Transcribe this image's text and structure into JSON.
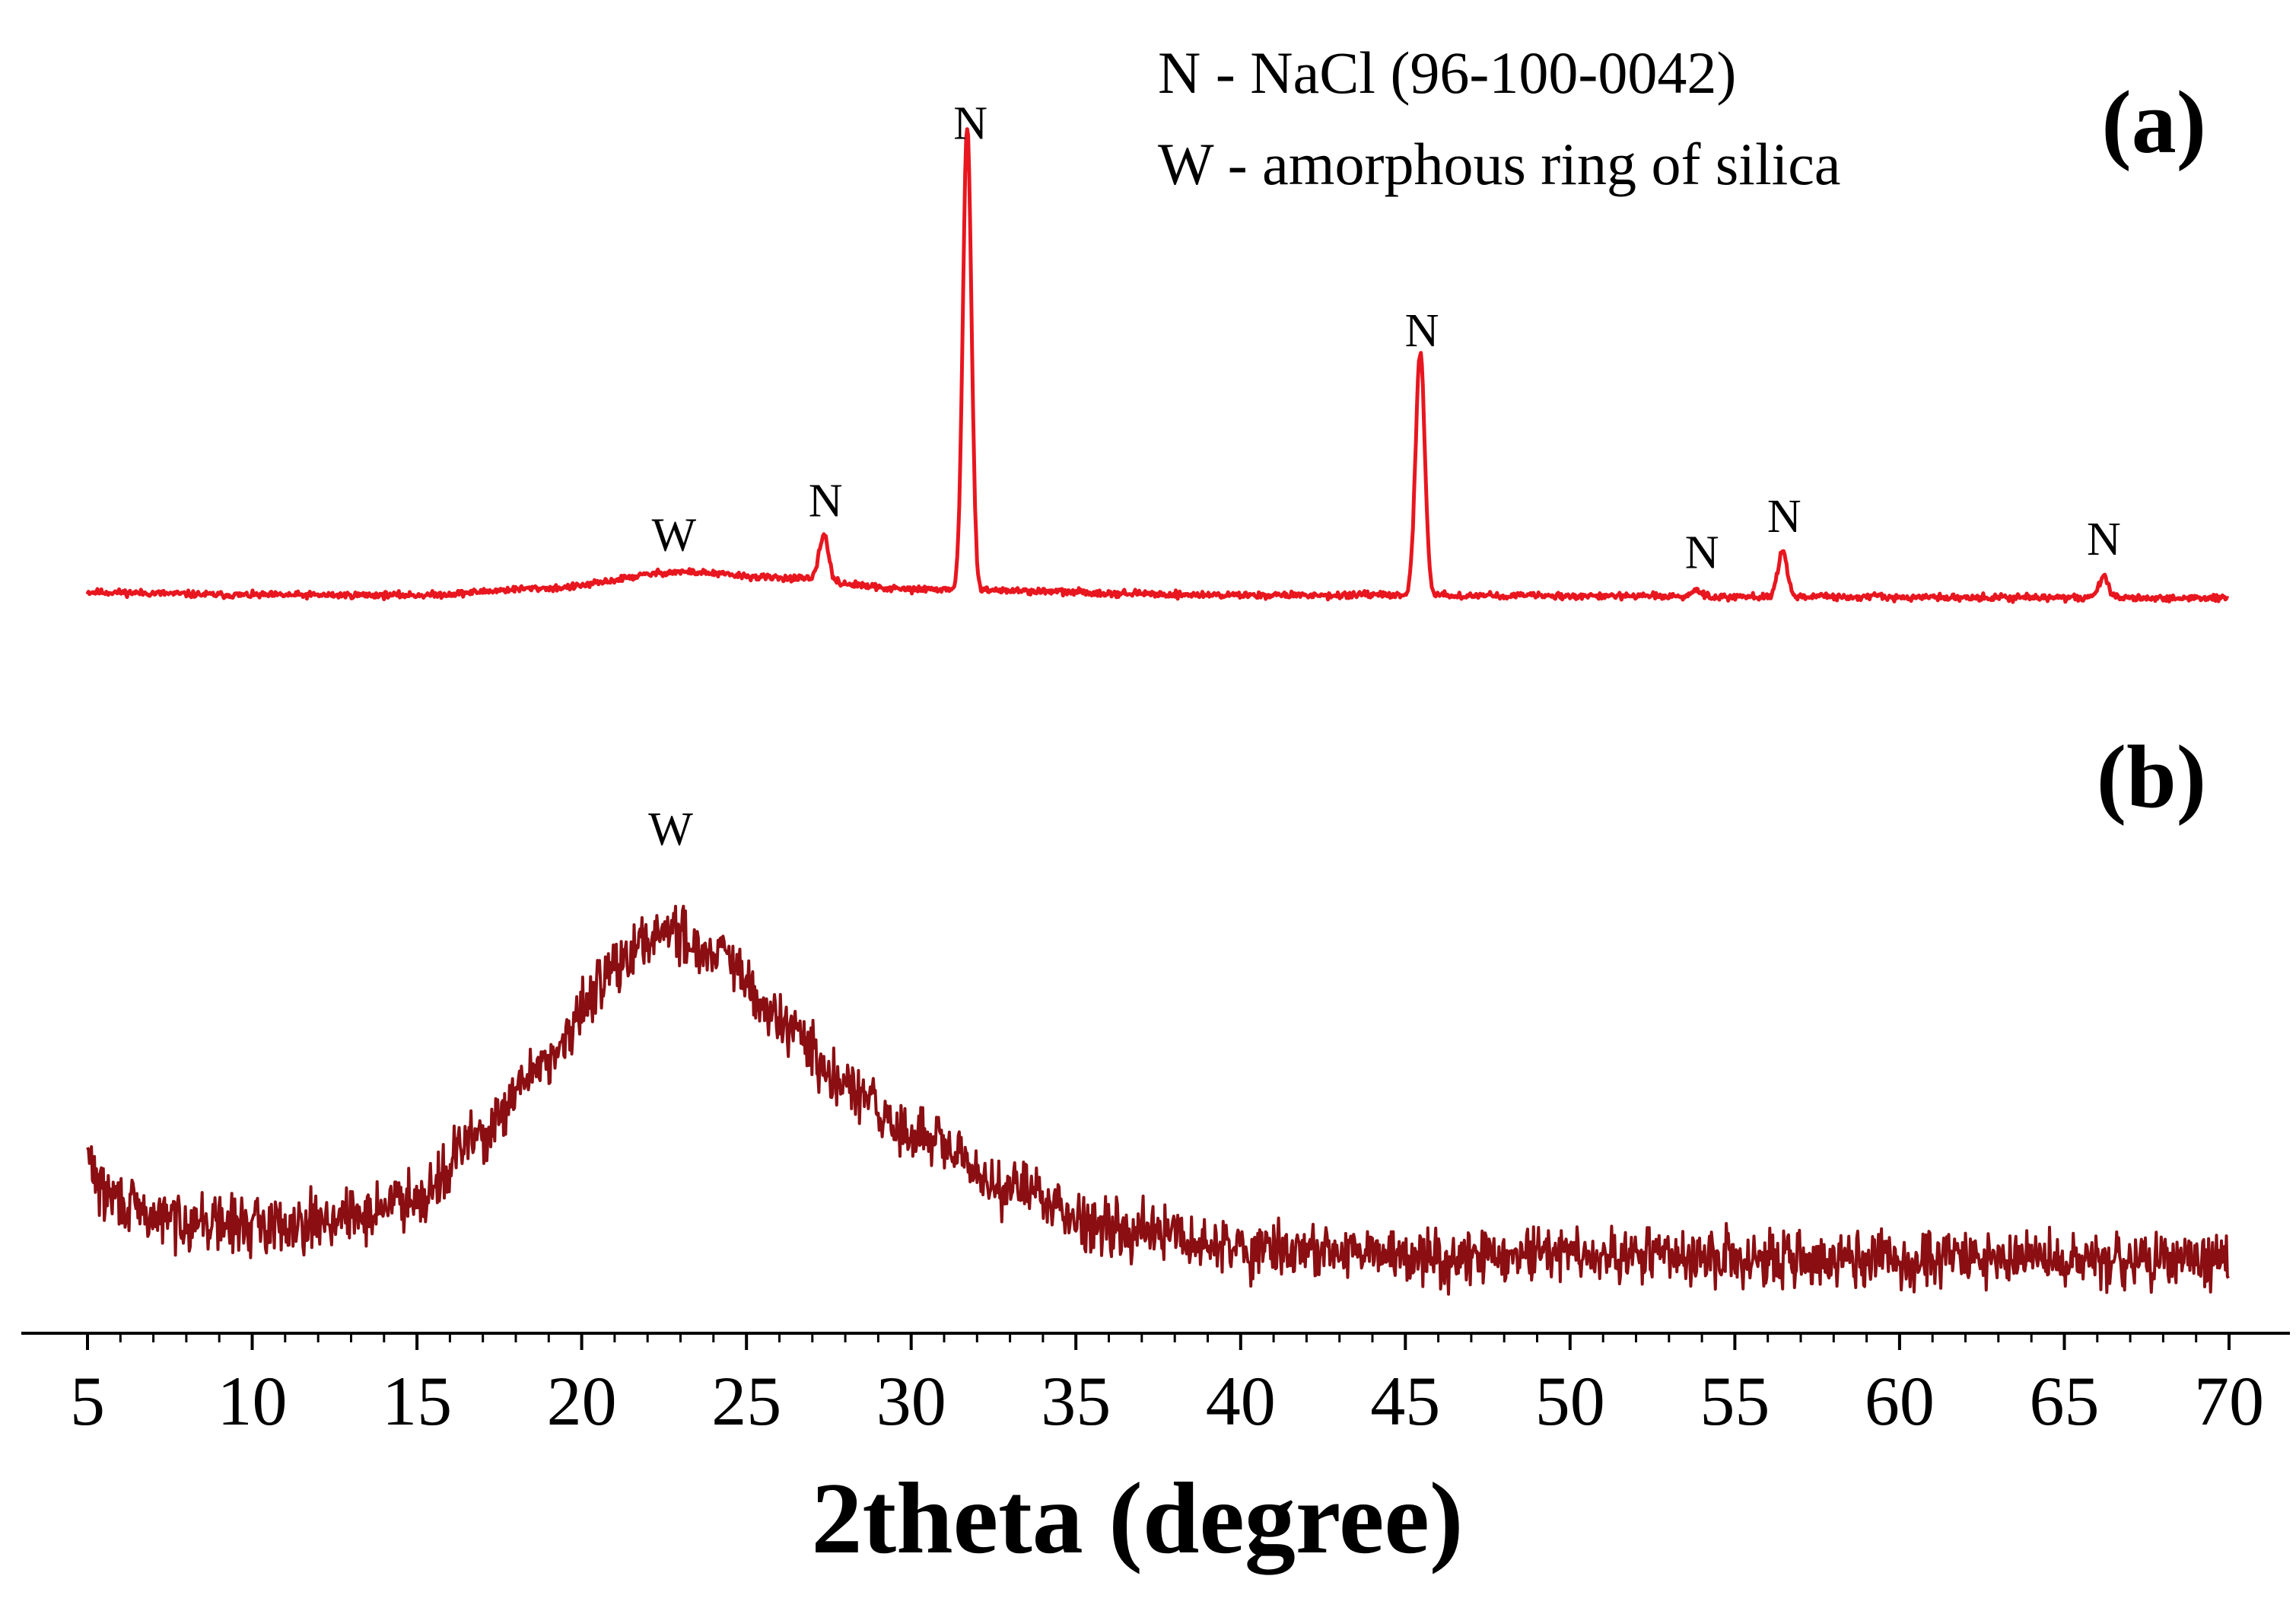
{
  "chart_data": {
    "type": "line",
    "xlabel": "2theta (degree)",
    "ylabel": "",
    "xlim": [
      5,
      70
    ],
    "ylim": [
      0,
      1
    ],
    "y_axis_shown": false,
    "grid": false,
    "x_ticks": [
      "5",
      "10",
      "15",
      "20",
      "25",
      "30",
      "35",
      "40",
      "45",
      "50",
      "55",
      "60",
      "65",
      "70"
    ],
    "x_minor_tick_step": 1,
    "legend_position": "top",
    "legend": [
      "N - NaCl (96-100-0042)",
      "W - amorphous ring of silica"
    ],
    "series": [
      {
        "name": "(a)",
        "panel_label": "(a)",
        "color": "#e8161f",
        "noise": 0.004,
        "seed": 11,
        "baseline": [
          [
            5,
            0.005
          ],
          [
            10,
            0.0
          ],
          [
            15,
            0.0
          ],
          [
            19,
            0.012
          ],
          [
            23,
            0.04
          ],
          [
            26,
            0.03
          ],
          [
            30,
            0.01
          ],
          [
            40,
            0.0
          ],
          [
            70,
            -0.005
          ]
        ],
        "peaks": [
          {
            "x": 27.35,
            "height": 0.08,
            "width": 0.14
          },
          {
            "x": 31.7,
            "height": 0.8,
            "width": 0.13
          },
          {
            "x": 45.45,
            "height": 0.42,
            "width": 0.14
          },
          {
            "x": 53.85,
            "height": 0.012,
            "width": 0.14
          },
          {
            "x": 56.45,
            "height": 0.08,
            "width": 0.14
          },
          {
            "x": 66.2,
            "height": 0.038,
            "width": 0.14
          }
        ],
        "annotations": [
          {
            "x": 22.8,
            "label": "W"
          },
          {
            "x": 27.4,
            "label": "N"
          },
          {
            "x": 31.8,
            "label": "N"
          },
          {
            "x": 45.5,
            "label": "N"
          },
          {
            "x": 54.0,
            "label": "N"
          },
          {
            "x": 56.5,
            "label": "N"
          },
          {
            "x": 66.2,
            "label": "N"
          }
        ]
      },
      {
        "name": "(b)",
        "panel_label": "(b)",
        "color": "#8b0e12",
        "noise": 0.026,
        "seed": 29,
        "baseline": [
          [
            5,
            0.22
          ],
          [
            5.5,
            0.17
          ],
          [
            7,
            0.14
          ],
          [
            10,
            0.13
          ],
          [
            13,
            0.14
          ],
          [
            15,
            0.17
          ],
          [
            17,
            0.25
          ],
          [
            19,
            0.35
          ],
          [
            21,
            0.47
          ],
          [
            22.5,
            0.52
          ],
          [
            24,
            0.49
          ],
          [
            26,
            0.4
          ],
          [
            28,
            0.31
          ],
          [
            30,
            0.25
          ],
          [
            33,
            0.18
          ],
          [
            36,
            0.13
          ],
          [
            40,
            0.1
          ],
          [
            45,
            0.09
          ],
          [
            50,
            0.09
          ],
          [
            55,
            0.085
          ],
          [
            60,
            0.085
          ],
          [
            65,
            0.085
          ],
          [
            70,
            0.08
          ]
        ],
        "peaks": [],
        "annotations": [
          {
            "x": 22.7,
            "label": "W"
          }
        ]
      }
    ]
  }
}
